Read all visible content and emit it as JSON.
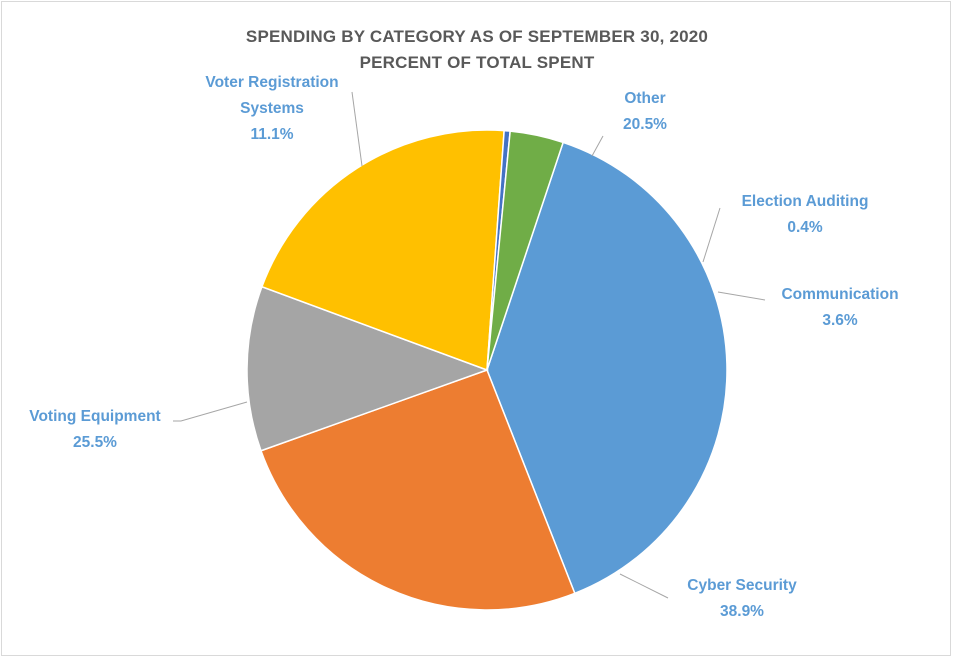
{
  "chart_data": {
    "type": "pie",
    "title": "SPENDING BY CATEGORY AS OF SEPTEMBER 30, 2020",
    "subtitle": "PERCENT OF TOTAL SPENT",
    "slices": [
      {
        "name": "Cyber Security",
        "value": 38.9,
        "label_lines": [
          "Cyber Security",
          "38.9%"
        ],
        "color": "#5b9bd5"
      },
      {
        "name": "Voting Equipment",
        "value": 25.5,
        "label_lines": [
          "Voting Equipment",
          "25.5%"
        ],
        "color": "#ed7d31"
      },
      {
        "name": "Voter Registration Systems",
        "value": 11.1,
        "label_lines": [
          "Voter Registration",
          "Systems",
          "11.1%"
        ],
        "color": "#a5a5a5"
      },
      {
        "name": "Other",
        "value": 20.5,
        "label_lines": [
          "Other",
          "20.5%"
        ],
        "color": "#ffc000"
      },
      {
        "name": "Election Auditing",
        "value": 0.4,
        "label_lines": [
          "Election Auditing",
          "0.4%"
        ],
        "color": "#4472c4"
      },
      {
        "name": "Communication",
        "value": 3.6,
        "label_lines": [
          "Communication",
          "3.6%"
        ],
        "color": "#70ad47"
      }
    ],
    "label_color": "#5b9bd5"
  }
}
